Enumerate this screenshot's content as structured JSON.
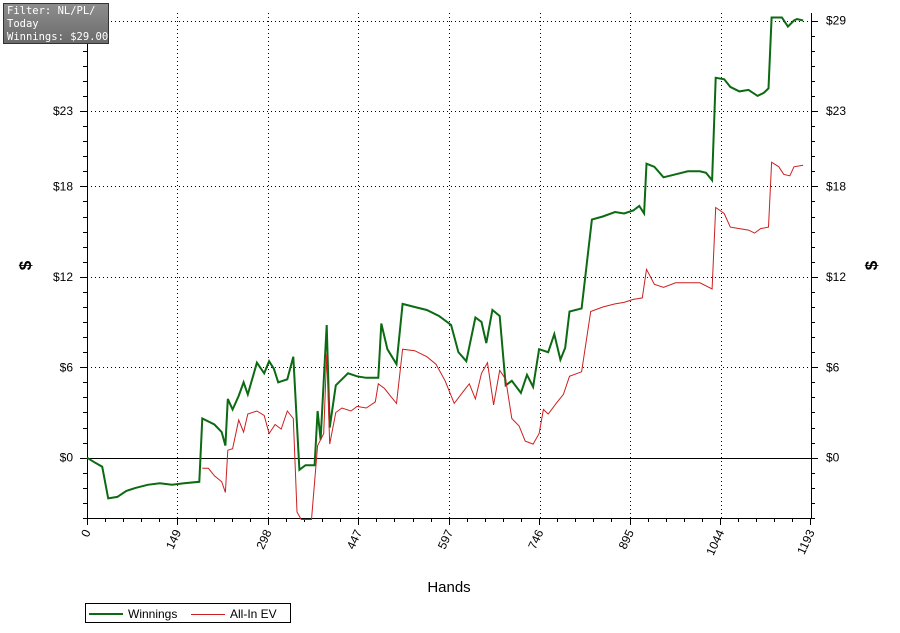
{
  "info_box": {
    "lines": [
      "Filter: NL/PL/",
      "Today",
      "Winnings: $29.00"
    ]
  },
  "colors": {
    "winnings": "#0b6a12",
    "allin": "#cc1f1f",
    "grid": "#000000",
    "zero_line": "#000000"
  },
  "chart_data": {
    "type": "line",
    "xlabel": "Hands",
    "ylabel": "$",
    "xlim": [
      0,
      1193
    ],
    "ylim": [
      -4,
      29.5
    ],
    "x_ticks": [
      0,
      149,
      298,
      447,
      597,
      746,
      895,
      1044,
      1193
    ],
    "x_tick_labels": [
      "0",
      "149",
      "298",
      "447",
      "597",
      "746",
      "895",
      "1044",
      "1193"
    ],
    "y_ticks": [
      0,
      6,
      12,
      18,
      23
    ],
    "y_tick_labels_left": [
      "$0",
      "$6",
      "$12",
      "$18",
      "$23"
    ],
    "y_tick_labels_right": [
      "$0",
      "$6",
      "$12",
      "$18",
      "$23",
      "$29"
    ],
    "right_top_value": 29,
    "grid": true,
    "legend_position": "bottom-left",
    "series": [
      {
        "name": "Winnings",
        "points": [
          [
            0,
            0
          ],
          [
            12,
            -0.3
          ],
          [
            25,
            -0.6
          ],
          [
            35,
            -2.7
          ],
          [
            50,
            -2.6
          ],
          [
            65,
            -2.2
          ],
          [
            80,
            -2.0
          ],
          [
            100,
            -1.8
          ],
          [
            120,
            -1.7
          ],
          [
            140,
            -1.8
          ],
          [
            160,
            -1.7
          ],
          [
            185,
            -1.6
          ],
          [
            190,
            2.6
          ],
          [
            210,
            2.2
          ],
          [
            222,
            1.7
          ],
          [
            228,
            0.8
          ],
          [
            232,
            3.9
          ],
          [
            240,
            3.2
          ],
          [
            250,
            4.1
          ],
          [
            258,
            5.0
          ],
          [
            265,
            4.2
          ],
          [
            280,
            6.3
          ],
          [
            292,
            5.6
          ],
          [
            300,
            6.4
          ],
          [
            308,
            5.9
          ],
          [
            315,
            5.0
          ],
          [
            330,
            5.2
          ],
          [
            340,
            6.7
          ],
          [
            350,
            -0.8
          ],
          [
            360,
            -0.5
          ],
          [
            375,
            -0.5
          ],
          [
            380,
            3.1
          ],
          [
            385,
            1.2
          ],
          [
            395,
            8.8
          ],
          [
            400,
            2.0
          ],
          [
            410,
            4.8
          ],
          [
            420,
            5.2
          ],
          [
            430,
            5.6
          ],
          [
            445,
            5.4
          ],
          [
            460,
            5.3
          ],
          [
            480,
            5.3
          ],
          [
            485,
            8.9
          ],
          [
            495,
            7.2
          ],
          [
            510,
            6.2
          ],
          [
            520,
            10.2
          ],
          [
            540,
            10.0
          ],
          [
            560,
            9.8
          ],
          [
            580,
            9.4
          ],
          [
            600,
            8.8
          ],
          [
            612,
            7.0
          ],
          [
            625,
            6.4
          ],
          [
            640,
            9.3
          ],
          [
            650,
            9.0
          ],
          [
            658,
            7.6
          ],
          [
            668,
            9.8
          ],
          [
            680,
            9.4
          ],
          [
            690,
            4.8
          ],
          [
            700,
            5.1
          ],
          [
            715,
            4.3
          ],
          [
            725,
            5.5
          ],
          [
            735,
            4.7
          ],
          [
            745,
            7.2
          ],
          [
            760,
            7.0
          ],
          [
            770,
            8.2
          ],
          [
            780,
            6.5
          ],
          [
            788,
            7.3
          ],
          [
            795,
            9.7
          ],
          [
            815,
            9.9
          ],
          [
            832,
            15.8
          ],
          [
            850,
            16.0
          ],
          [
            870,
            16.3
          ],
          [
            885,
            16.2
          ],
          [
            900,
            16.4
          ],
          [
            910,
            16.7
          ],
          [
            918,
            16.2
          ],
          [
            922,
            19.5
          ],
          [
            935,
            19.3
          ],
          [
            950,
            18.6
          ],
          [
            970,
            18.8
          ],
          [
            990,
            19.0
          ],
          [
            1010,
            19.0
          ],
          [
            1020,
            18.9
          ],
          [
            1030,
            18.4
          ],
          [
            1036,
            25.2
          ],
          [
            1050,
            25.1
          ],
          [
            1060,
            24.6
          ],
          [
            1075,
            24.3
          ],
          [
            1090,
            24.4
          ],
          [
            1105,
            24.0
          ],
          [
            1115,
            24.2
          ],
          [
            1123,
            24.5
          ],
          [
            1128,
            29.2
          ],
          [
            1145,
            29.2
          ],
          [
            1155,
            28.6
          ],
          [
            1165,
            29.0
          ],
          [
            1170,
            29.1
          ],
          [
            1180,
            29.0
          ]
        ]
      },
      {
        "name": "All-In EV",
        "points": [
          [
            190,
            -0.7
          ],
          [
            200,
            -0.7
          ],
          [
            210,
            -1.2
          ],
          [
            222,
            -1.6
          ],
          [
            228,
            -2.3
          ],
          [
            232,
            0.5
          ],
          [
            240,
            0.6
          ],
          [
            250,
            2.5
          ],
          [
            258,
            1.7
          ],
          [
            265,
            2.9
          ],
          [
            280,
            3.1
          ],
          [
            292,
            2.8
          ],
          [
            300,
            1.6
          ],
          [
            310,
            2.2
          ],
          [
            320,
            1.9
          ],
          [
            330,
            3.1
          ],
          [
            340,
            2.6
          ],
          [
            346,
            -3.6
          ],
          [
            353,
            -4.1
          ],
          [
            370,
            -4.1
          ],
          [
            380,
            0.8
          ],
          [
            390,
            1.6
          ],
          [
            395,
            6.9
          ],
          [
            400,
            0.9
          ],
          [
            410,
            3.0
          ],
          [
            420,
            3.3
          ],
          [
            435,
            3.1
          ],
          [
            445,
            3.4
          ],
          [
            460,
            3.3
          ],
          [
            475,
            3.7
          ],
          [
            480,
            4.9
          ],
          [
            490,
            4.6
          ],
          [
            500,
            4.1
          ],
          [
            510,
            3.6
          ],
          [
            520,
            7.2
          ],
          [
            540,
            7.1
          ],
          [
            560,
            6.7
          ],
          [
            575,
            6.2
          ],
          [
            590,
            5.1
          ],
          [
            605,
            3.6
          ],
          [
            620,
            4.4
          ],
          [
            630,
            4.9
          ],
          [
            640,
            3.9
          ],
          [
            650,
            5.6
          ],
          [
            660,
            6.3
          ],
          [
            670,
            3.5
          ],
          [
            680,
            5.8
          ],
          [
            690,
            5.2
          ],
          [
            700,
            2.6
          ],
          [
            712,
            2.1
          ],
          [
            722,
            1.1
          ],
          [
            735,
            0.9
          ],
          [
            745,
            1.6
          ],
          [
            752,
            3.2
          ],
          [
            760,
            2.9
          ],
          [
            775,
            3.7
          ],
          [
            785,
            4.2
          ],
          [
            795,
            5.4
          ],
          [
            815,
            5.7
          ],
          [
            830,
            9.7
          ],
          [
            850,
            10.0
          ],
          [
            870,
            10.2
          ],
          [
            885,
            10.3
          ],
          [
            900,
            10.5
          ],
          [
            915,
            10.6
          ],
          [
            922,
            12.5
          ],
          [
            935,
            11.5
          ],
          [
            950,
            11.3
          ],
          [
            970,
            11.6
          ],
          [
            990,
            11.6
          ],
          [
            1010,
            11.6
          ],
          [
            1030,
            11.2
          ],
          [
            1036,
            16.6
          ],
          [
            1050,
            16.2
          ],
          [
            1060,
            15.3
          ],
          [
            1075,
            15.2
          ],
          [
            1090,
            15.1
          ],
          [
            1100,
            14.9
          ],
          [
            1110,
            15.2
          ],
          [
            1123,
            15.3
          ],
          [
            1128,
            19.6
          ],
          [
            1140,
            19.3
          ],
          [
            1148,
            18.8
          ],
          [
            1158,
            18.7
          ],
          [
            1165,
            19.3
          ],
          [
            1180,
            19.4
          ]
        ]
      }
    ]
  }
}
